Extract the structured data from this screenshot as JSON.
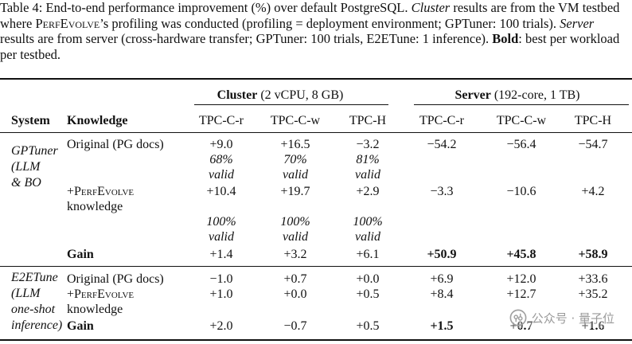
{
  "caption": {
    "label": "Table 4:",
    "text_1": " End-to-end performance improvement (%) over default PostgreSQL. ",
    "cluster_word": "Cluster",
    "text_2": " results are from the VM testbed where ",
    "perfevolve": "PerfEvolve",
    "text_3": "’s profiling was conducted (profiling = deployment environment; GPTuner: 100 trials). ",
    "server_word": "Server",
    "text_4": " results are from server (cross-hardware transfer; GPTuner: 100 trials, E2ETune: 1 inference). ",
    "bold_word": "Bold",
    "text_5": ": best per workload per testbed."
  },
  "groups": {
    "cluster_name": "Cluster",
    "cluster_spec": "(2 vCPU, 8 GB)",
    "server_name": "Server",
    "server_spec": "(192-core, 1 TB)"
  },
  "headers": {
    "system": "System",
    "knowledge": "Knowledge",
    "c1": "TPC-C-r",
    "c2": "TPC-C-w",
    "c3": "TPC-H",
    "s1": "TPC-C-r",
    "s2": "TPC-C-w",
    "s3": "TPC-H"
  },
  "gptuner": {
    "system_line1": "GPTuner",
    "system_line2": "(LLM",
    "system_line3": "& BO",
    "orig_label": "Original (PG docs)",
    "orig": [
      "+9.0",
      "+16.5",
      "−3.2",
      "−54.2",
      "−56.4",
      "−54.7"
    ],
    "orig_valid": [
      "68%",
      "70%",
      "81%"
    ],
    "valid_word": "valid",
    "perf_plus": "+",
    "perf_name": "PerfEvolve",
    "perf_line2": "knowledge",
    "perf": [
      "+10.4",
      "+19.7",
      "+2.9",
      "−3.3",
      "−10.6",
      "+4.2"
    ],
    "perf_valid": [
      "100%",
      "100%",
      "100%"
    ],
    "gain_label": "Gain",
    "gain": [
      "+1.4",
      "+3.2",
      "+6.1",
      "+50.9",
      "+45.8",
      "+58.9"
    ]
  },
  "e2etune": {
    "system_line1": "E2ETune",
    "system_line2": "(LLM",
    "system_line3": "one-shot",
    "system_line4": "inference)",
    "orig_label": "Original (PG docs)",
    "orig": [
      "−1.0",
      "+0.7",
      "+0.0",
      "+6.9",
      "+12.0",
      "+33.6"
    ],
    "perf_plus": "+",
    "perf_name": "PerfEvolve",
    "perf_line2": "knowledge",
    "perf": [
      "+1.0",
      "+0.0",
      "+0.5",
      "+8.4",
      "+12.7",
      "+35.2"
    ],
    "gain_label": "Gain",
    "gain": [
      "+2.0",
      "−0.7",
      "+0.5",
      "+1.5",
      "+0.7",
      "+1.6"
    ]
  },
  "watermark": {
    "icon": "wechat-official-account-icon",
    "text": "公众号 · 量子位"
  }
}
